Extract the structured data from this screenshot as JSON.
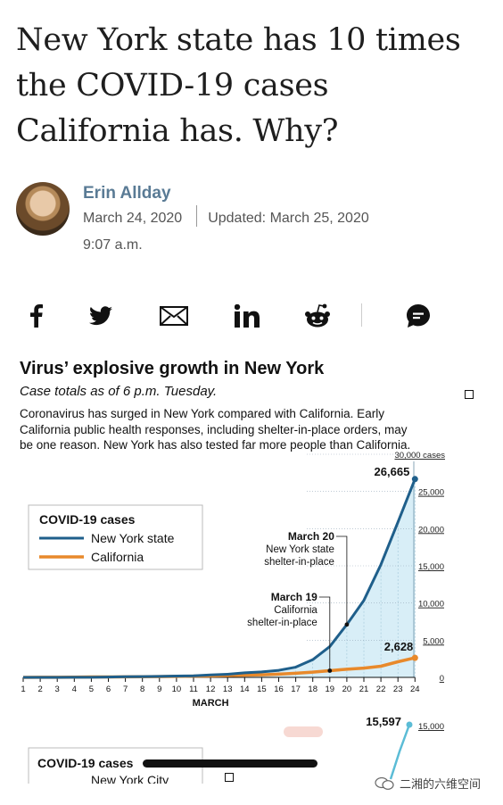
{
  "article": {
    "headline": "New York state has 10 times the COVID-19 cases California has. Why?",
    "author": "Erin Allday",
    "date": "March 24, 2020",
    "updated": "Updated: March 25, 2020",
    "time": "9:07 a.m."
  },
  "share_icons": [
    "facebook-icon",
    "twitter-icon",
    "email-icon",
    "linkedin-icon",
    "reddit-icon",
    "comment-icon"
  ],
  "graphic": {
    "title": "Virus’ explosive growth in New York",
    "subtitle": "Case totals as of 6 p.m. Tuesday.",
    "description": "Coronavirus has surged in New York compared with California. Early California public health responses, including shelter-in-place orders, may be one reason. New York has also tested far more people than California."
  },
  "chart_data": [
    {
      "type": "line",
      "legend_title": "COVID-19 cases",
      "legend_position": "top-left",
      "xlabel": "MARCH",
      "x": [
        1,
        2,
        3,
        4,
        5,
        6,
        7,
        8,
        9,
        10,
        11,
        12,
        13,
        14,
        15,
        16,
        17,
        18,
        19,
        20,
        21,
        22,
        23,
        24
      ],
      "x_ticks": [
        "1",
        "2",
        "3",
        "4",
        "5",
        "6",
        "7",
        "8",
        "9",
        "10",
        "11",
        "12",
        "13",
        "14",
        "15",
        "16",
        "17",
        "18",
        "19",
        "20",
        "21",
        "22",
        "23",
        "24"
      ],
      "y_ticks": [
        "0",
        "5,000",
        "10,000",
        "15,000",
        "20,000",
        "25,000",
        "30,000 cases"
      ],
      "y_tick_values": [
        0,
        5000,
        10000,
        15000,
        20000,
        25000,
        30000
      ],
      "ylim": [
        0,
        30000
      ],
      "series": [
        {
          "name": "New York state",
          "color": "#1f5f8b",
          "values": [
            0,
            0,
            1,
            11,
            22,
            44,
            89,
            106,
            142,
            173,
            216,
            328,
            421,
            613,
            729,
            950,
            1374,
            2382,
            4152,
            7102,
            10356,
            15168,
            20875,
            26665
          ]
        },
        {
          "name": "California",
          "color": "#e8892b",
          "values": [
            0,
            10,
            20,
            35,
            53,
            60,
            70,
            90,
            110,
            130,
            160,
            200,
            250,
            300,
            350,
            440,
            560,
            700,
            900,
            1100,
            1250,
            1500,
            2100,
            2628
          ]
        }
      ],
      "end_labels": [
        "26,665",
        "2,628"
      ],
      "annotations": [
        {
          "x": 20,
          "series": "New York state",
          "lines": [
            "March 20",
            "New York state",
            "shelter-in-place"
          ]
        },
        {
          "x": 19,
          "series": "California",
          "lines": [
            "March 19",
            "California",
            "shelter-in-place"
          ]
        }
      ]
    },
    {
      "type": "line",
      "legend_title": "COVID-19 cases",
      "y_ticks": [
        "15,000"
      ],
      "series": [
        {
          "name": "New York City",
          "values": [
            15597
          ]
        }
      ],
      "end_labels": [
        "15,597"
      ]
    }
  ],
  "watermark": "二湘的六维空间"
}
